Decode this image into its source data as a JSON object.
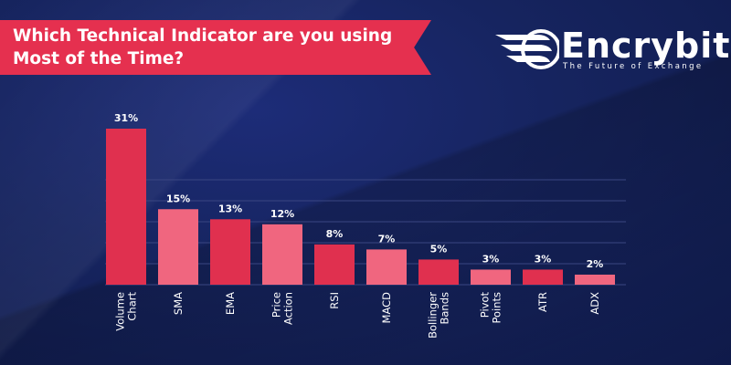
{
  "header": {
    "title_line1": "Which Technical Indicator are you using",
    "title_line2": "Most of the Time?"
  },
  "logo": {
    "word": "Encrybit",
    "tagline": "The Future of Exchange"
  },
  "colors": {
    "background": "#13205a",
    "banner": "#e5304f",
    "bar_dark": "#e0304f",
    "bar_light": "#f0667f",
    "grid": "#3a4682"
  },
  "chart_data": {
    "type": "bar",
    "title": "Which Technical Indicator are you using Most of the Time?",
    "categories": [
      [
        "Volume",
        "Chart"
      ],
      [
        "SMA"
      ],
      [
        "EMA"
      ],
      [
        "Price",
        "Action"
      ],
      [
        "RSI"
      ],
      [
        "MACD"
      ],
      [
        "Bollinger",
        "Bands"
      ],
      [
        "Pivot",
        "Points"
      ],
      [
        "ATR"
      ],
      [
        "ADX"
      ]
    ],
    "values": [
      31,
      15,
      13,
      12,
      8,
      7,
      5,
      3,
      3,
      2
    ],
    "value_labels": [
      "31%",
      "15%",
      "13%",
      "12%",
      "8%",
      "7%",
      "5%",
      "3%",
      "3%",
      "2%"
    ],
    "bar_color_pattern": [
      "dark",
      "light",
      "dark",
      "light",
      "dark",
      "light",
      "dark",
      "light",
      "dark",
      "light"
    ],
    "ylim": [
      0,
      31
    ],
    "grid": true,
    "xlabel": "",
    "ylabel": ""
  }
}
